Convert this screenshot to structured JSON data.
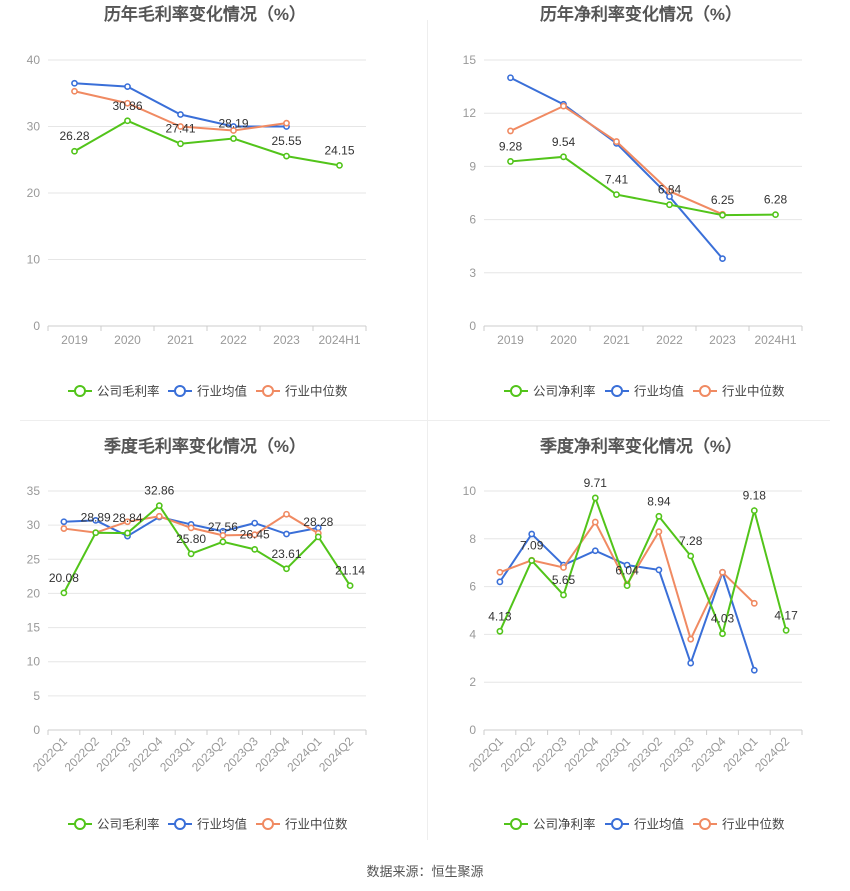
{
  "source": "数据来源：恒生聚源",
  "colors": {
    "company": "#52c41a",
    "industry_avg": "#3a6fd8",
    "industry_median": "#f08a62",
    "grid": "#e6e6e6",
    "axis_text": "#999999",
    "label_text": "#333333",
    "title_text": "#555555"
  },
  "chart_data": [
    {
      "type": "line",
      "title": "历年毛利率变化情况（%）",
      "categories": [
        "2019",
        "2020",
        "2021",
        "2022",
        "2023",
        "2024H1"
      ],
      "ylim": [
        0,
        40
      ],
      "yticks": [
        0,
        10,
        20,
        30,
        40
      ],
      "series": [
        {
          "name": "公司毛利率",
          "role": "company",
          "values": [
            26.28,
            30.86,
            27.41,
            28.19,
            25.55,
            24.15
          ],
          "labels": [
            "26.28",
            "30.86",
            "27.41",
            "28.19",
            "25.55",
            "24.15"
          ]
        },
        {
          "name": "行业均值",
          "role": "industry_avg",
          "values": [
            36.5,
            36.0,
            31.8,
            30.0,
            30.0,
            null
          ]
        },
        {
          "name": "行业中位数",
          "role": "industry_median",
          "values": [
            35.3,
            33.5,
            30.0,
            29.4,
            30.5,
            null
          ]
        }
      ],
      "legend": "bottom",
      "grid": true
    },
    {
      "type": "line",
      "title": "历年净利率变化情况（%）",
      "categories": [
        "2019",
        "2020",
        "2021",
        "2022",
        "2023",
        "2024H1"
      ],
      "ylim": [
        0,
        15
      ],
      "yticks": [
        0,
        3,
        6,
        9,
        12,
        15
      ],
      "series": [
        {
          "name": "公司净利率",
          "role": "company",
          "values": [
            9.28,
            9.54,
            7.41,
            6.84,
            6.25,
            6.28
          ],
          "labels": [
            "9.28",
            "9.54",
            "7.41",
            "6.84",
            "6.25",
            "6.28"
          ]
        },
        {
          "name": "行业均值",
          "role": "industry_avg",
          "values": [
            14.0,
            12.5,
            10.3,
            7.3,
            3.8,
            null
          ]
        },
        {
          "name": "行业中位数",
          "role": "industry_median",
          "values": [
            11.0,
            12.4,
            10.4,
            7.6,
            6.3,
            null
          ]
        }
      ],
      "legend": "bottom",
      "grid": true
    },
    {
      "type": "line",
      "title": "季度毛利率变化情况（%）",
      "categories": [
        "2022Q1",
        "2022Q2",
        "2022Q3",
        "2022Q4",
        "2023Q1",
        "2023Q2",
        "2023Q3",
        "2023Q4",
        "2024Q1",
        "2024Q2"
      ],
      "ylim": [
        0,
        35
      ],
      "yticks": [
        0,
        5,
        10,
        15,
        20,
        25,
        30,
        35
      ],
      "series": [
        {
          "name": "公司毛利率",
          "role": "company",
          "values": [
            20.08,
            28.89,
            28.84,
            32.86,
            25.8,
            27.56,
            26.45,
            23.61,
            28.28,
            21.14
          ],
          "labels": [
            "20.08",
            "28.89",
            "28.84",
            "32.86",
            "25.80",
            "27.56",
            "26.45",
            "23.61",
            "28.28",
            "21.14"
          ]
        },
        {
          "name": "行业均值",
          "role": "industry_avg",
          "values": [
            30.5,
            30.7,
            28.4,
            31.2,
            30.1,
            29.1,
            30.3,
            28.7,
            29.6,
            null
          ]
        },
        {
          "name": "行业中位数",
          "role": "industry_median",
          "values": [
            29.5,
            28.9,
            30.5,
            31.3,
            29.6,
            28.5,
            28.6,
            31.6,
            28.8,
            null
          ]
        }
      ],
      "legend": "bottom",
      "grid": true
    },
    {
      "type": "line",
      "title": "季度净利率变化情况（%）",
      "categories": [
        "2022Q1",
        "2022Q2",
        "2022Q3",
        "2022Q4",
        "2023Q1",
        "2023Q2",
        "2023Q3",
        "2023Q4",
        "2024Q1",
        "2024Q2"
      ],
      "ylim": [
        0,
        10
      ],
      "yticks": [
        0,
        2,
        4,
        6,
        8,
        10
      ],
      "series": [
        {
          "name": "公司净利率",
          "role": "company",
          "values": [
            4.13,
            7.09,
            5.65,
            9.71,
            6.04,
            8.94,
            7.28,
            4.03,
            9.18,
            4.17
          ],
          "labels": [
            "4.13",
            "7.09",
            "5.65",
            "9.71",
            "6.04",
            "8.94",
            "7.28",
            "4.03",
            "9.18",
            "4.17"
          ]
        },
        {
          "name": "行业均值",
          "role": "industry_avg",
          "values": [
            6.2,
            8.2,
            6.9,
            7.5,
            6.9,
            6.7,
            2.8,
            6.6,
            2.5,
            null
          ]
        },
        {
          "name": "行业中位数",
          "role": "industry_median",
          "values": [
            6.6,
            7.1,
            6.8,
            8.7,
            6.1,
            8.3,
            3.8,
            6.6,
            5.3,
            null
          ]
        }
      ],
      "legend": "bottom",
      "grid": true
    }
  ]
}
